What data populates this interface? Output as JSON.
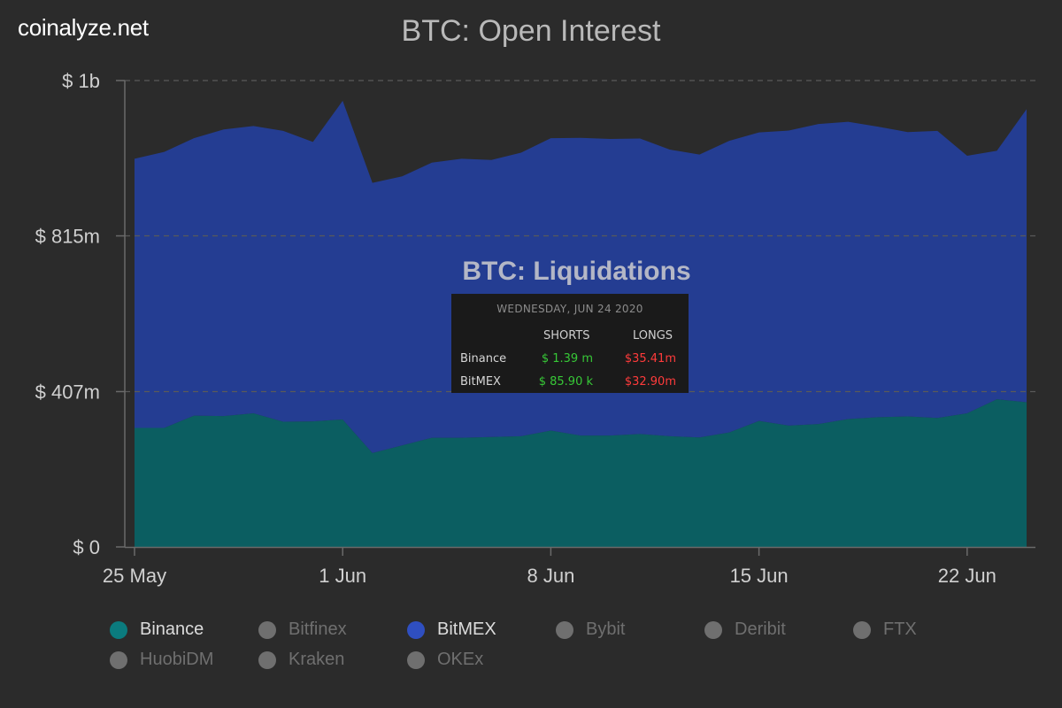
{
  "brand": "coinalyze.net",
  "chart_data": {
    "type": "area",
    "title": "BTC: Open Interest",
    "y_ticks": [
      {
        "value": 0,
        "label": "$ 0"
      },
      {
        "value": 407,
        "label": "$ 407m"
      },
      {
        "value": 815,
        "label": "$ 815m"
      },
      {
        "value": 1222,
        "label": "$ 1b"
      }
    ],
    "ylim": [
      0,
      1222
    ],
    "y_unit": "millions USD",
    "x_ticks": [
      {
        "date": "2020-05-25",
        "label": "25 May"
      },
      {
        "date": "2020-06-01",
        "label": "1 Jun"
      },
      {
        "date": "2020-06-08",
        "label": "8 Jun"
      },
      {
        "date": "2020-06-15",
        "label": "15 Jun"
      },
      {
        "date": "2020-06-22",
        "label": "22 Jun"
      }
    ],
    "x": [
      "2020-05-25",
      "2020-05-26",
      "2020-05-27",
      "2020-05-28",
      "2020-05-29",
      "2020-05-30",
      "2020-05-31",
      "2020-06-01",
      "2020-06-02",
      "2020-06-03",
      "2020-06-04",
      "2020-06-05",
      "2020-06-06",
      "2020-06-07",
      "2020-06-08",
      "2020-06-09",
      "2020-06-10",
      "2020-06-11",
      "2020-06-12",
      "2020-06-13",
      "2020-06-14",
      "2020-06-15",
      "2020-06-16",
      "2020-06-17",
      "2020-06-18",
      "2020-06-19",
      "2020-06-20",
      "2020-06-21",
      "2020-06-22",
      "2020-06-23",
      "2020-06-24"
    ],
    "stacked": true,
    "grid": "horizontal dashed",
    "series": [
      {
        "name": "Binance",
        "color": "#0b5e61",
        "values": [
          312,
          312,
          344,
          343,
          350,
          328,
          329,
          334,
          246,
          266,
          286,
          286,
          288,
          290,
          305,
          292,
          292,
          296,
          290,
          287,
          300,
          330,
          318,
          322,
          335,
          340,
          342,
          338,
          350,
          387,
          379
        ]
      },
      {
        "name": "BitMEX",
        "color": "#243d92",
        "values": [
          705,
          723,
          727,
          751,
          753,
          762,
          732,
          835,
          708,
          705,
          721,
          731,
          726,
          743,
          766,
          780,
          777,
          774,
          751,
          741,
          764,
          756,
          773,
          786,
          779,
          761,
          745,
          752,
          675,
          651,
          768
        ]
      }
    ]
  },
  "legend": [
    {
      "label": "Binance",
      "color": "#0b7b7e",
      "active": true
    },
    {
      "label": "Bitfinex",
      "color": "#6f6f6f",
      "active": false
    },
    {
      "label": "BitMEX",
      "color": "#2f4fc0",
      "active": true
    },
    {
      "label": "Bybit",
      "color": "#6f6f6f",
      "active": false
    },
    {
      "label": "Deribit",
      "color": "#6f6f6f",
      "active": false
    },
    {
      "label": "FTX",
      "color": "#6f6f6f",
      "active": false
    },
    {
      "label": "HuobiDM",
      "color": "#6f6f6f",
      "active": false
    },
    {
      "label": "Kraken",
      "color": "#6f6f6f",
      "active": false
    },
    {
      "label": "OKEx",
      "color": "#6f6f6f",
      "active": false
    }
  ],
  "liquidations": {
    "title": "BTC: Liquidations",
    "date": "WEDNESDAY, JUN 24 2020",
    "col_shorts": "SHORTS",
    "col_longs": "LONGS",
    "rows": [
      {
        "exchange": "Binance",
        "shorts": "$ 1.39 m",
        "longs": "$35.41m"
      },
      {
        "exchange": "BitMEX",
        "shorts": "$ 85.90 k",
        "longs": "$32.90m"
      }
    ],
    "shorts_color": "#37c837",
    "longs_color": "#ff3b3b"
  }
}
